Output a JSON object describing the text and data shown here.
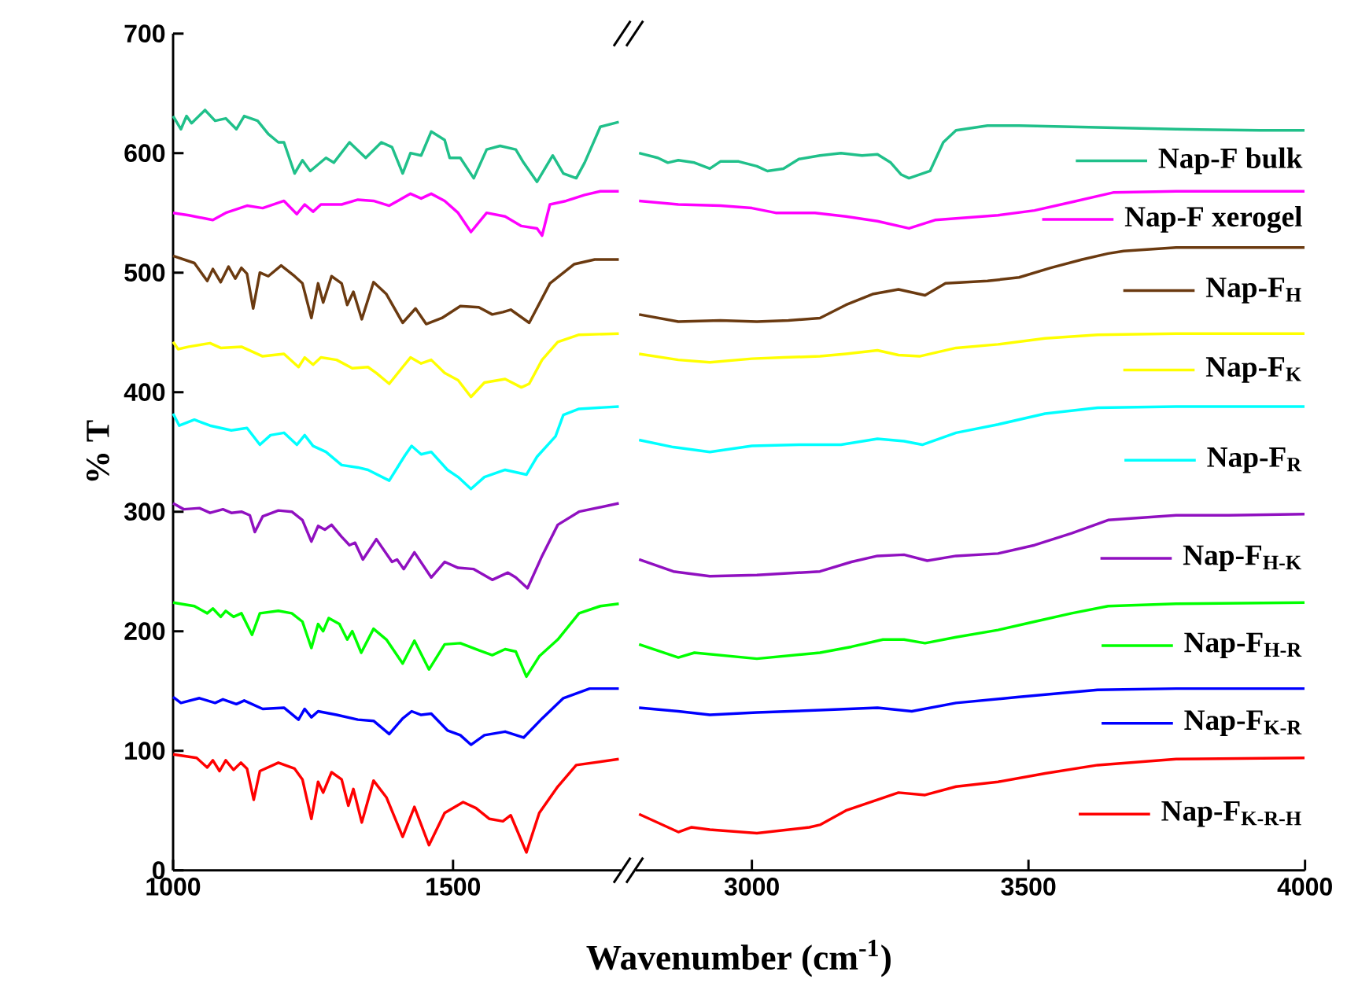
{
  "chart_data": [
    {
      "type": "line",
      "ylabel": "% T",
      "xlim": [
        1000,
        1800
      ],
      "xticks": [
        1000,
        1500
      ],
      "ylim": [
        0,
        700
      ],
      "yticks": [
        0,
        100,
        200,
        300,
        400,
        500,
        600,
        700
      ],
      "series": [
        {
          "color": "#20c08a",
          "x": [
            1000,
            1014,
            1024,
            1033,
            1057,
            1075,
            1094,
            1113,
            1127,
            1151,
            1170,
            1188,
            1198,
            1217,
            1231,
            1245,
            1273,
            1287,
            1315,
            1344,
            1372,
            1391,
            1410,
            1424,
            1443,
            1461,
            1485,
            1494,
            1513,
            1537,
            1560,
            1584,
            1612,
            1626,
            1650,
            1678,
            1697,
            1720,
            1735,
            1763,
            1796
          ],
          "values": [
            631,
            620,
            631,
            625,
            636,
            627,
            629,
            620,
            631,
            627,
            616,
            609,
            609,
            583,
            594,
            585,
            596,
            592,
            609,
            596,
            609,
            605,
            583,
            600,
            598,
            618,
            611,
            596,
            596,
            579,
            603,
            606,
            603,
            592,
            576,
            598,
            583,
            579,
            592,
            622,
            626
          ]
        },
        {
          "color": "#ff00ff",
          "x": [
            1000,
            1028,
            1071,
            1094,
            1132,
            1160,
            1198,
            1221,
            1235,
            1250,
            1264,
            1301,
            1330,
            1358,
            1386,
            1424,
            1443,
            1461,
            1485,
            1509,
            1532,
            1560,
            1593,
            1622,
            1650,
            1659,
            1673,
            1702,
            1735,
            1763,
            1796
          ],
          "values": [
            550,
            548,
            544,
            550,
            556,
            554,
            560,
            549,
            557,
            551,
            557,
            557,
            561,
            560,
            556,
            566,
            562,
            566,
            560,
            550,
            534,
            550,
            547,
            539,
            537,
            531,
            557,
            560,
            565,
            568,
            568
          ]
        },
        {
          "color": "#6b3a10",
          "x": [
            1000,
            1038,
            1061,
            1071,
            1085,
            1099,
            1111,
            1122,
            1132,
            1143,
            1155,
            1170,
            1193,
            1217,
            1231,
            1247,
            1259,
            1268,
            1283,
            1301,
            1311,
            1322,
            1337,
            1358,
            1381,
            1410,
            1433,
            1452,
            1480,
            1513,
            1546,
            1570,
            1589,
            1603,
            1636,
            1673,
            1716,
            1753,
            1796
          ],
          "values": [
            514,
            508,
            493,
            503,
            492,
            505,
            495,
            504,
            499,
            470,
            500,
            497,
            506,
            497,
            491,
            462,
            491,
            475,
            497,
            491,
            473,
            484,
            461,
            492,
            482,
            458,
            470,
            457,
            462,
            472,
            471,
            465,
            467,
            469,
            458,
            491,
            507,
            511,
            511
          ]
        },
        {
          "color": "#ffff00",
          "x": [
            1000,
            1009,
            1028,
            1066,
            1085,
            1122,
            1160,
            1198,
            1224,
            1235,
            1250,
            1264,
            1292,
            1320,
            1348,
            1363,
            1386,
            1410,
            1424,
            1443,
            1461,
            1485,
            1509,
            1532,
            1556,
            1593,
            1622,
            1636,
            1659,
            1687,
            1725,
            1796
          ],
          "values": [
            442,
            436,
            438,
            441,
            437,
            438,
            430,
            432,
            421,
            429,
            423,
            429,
            427,
            420,
            421,
            416,
            407,
            421,
            429,
            424,
            427,
            416,
            410,
            396,
            408,
            411,
            404,
            407,
            427,
            442,
            448,
            449
          ]
        },
        {
          "color": "#00ffff",
          "x": [
            1000,
            1011,
            1038,
            1066,
            1104,
            1132,
            1155,
            1174,
            1198,
            1221,
            1235,
            1250,
            1273,
            1301,
            1330,
            1348,
            1386,
            1414,
            1426,
            1443,
            1461,
            1490,
            1509,
            1532,
            1556,
            1593,
            1631,
            1650,
            1683,
            1697,
            1725,
            1796
          ],
          "values": [
            382,
            372,
            377,
            372,
            368,
            370,
            356,
            364,
            366,
            356,
            364,
            355,
            350,
            339,
            337,
            335,
            326,
            347,
            355,
            348,
            350,
            335,
            329,
            319,
            329,
            335,
            331,
            346,
            363,
            381,
            386,
            388
          ]
        },
        {
          "color": "#9010c0",
          "x": [
            1000,
            1019,
            1047,
            1066,
            1089,
            1104,
            1122,
            1137,
            1146,
            1160,
            1188,
            1212,
            1231,
            1247,
            1259,
            1271,
            1283,
            1301,
            1315,
            1325,
            1339,
            1363,
            1391,
            1400,
            1412,
            1431,
            1461,
            1485,
            1509,
            1537,
            1570,
            1598,
            1612,
            1633,
            1659,
            1687,
            1725,
            1796
          ],
          "values": [
            307,
            302,
            303,
            299,
            302,
            299,
            300,
            297,
            283,
            296,
            301,
            300,
            293,
            275,
            288,
            285,
            289,
            279,
            272,
            274,
            260,
            277,
            258,
            260,
            252,
            266,
            245,
            258,
            253,
            252,
            243,
            249,
            245,
            236,
            263,
            289,
            300,
            307
          ]
        },
        {
          "color": "#00ff00",
          "x": [
            1000,
            1038,
            1061,
            1071,
            1085,
            1094,
            1108,
            1122,
            1141,
            1155,
            1188,
            1212,
            1231,
            1247,
            1259,
            1268,
            1278,
            1297,
            1311,
            1320,
            1336,
            1358,
            1381,
            1410,
            1431,
            1457,
            1485,
            1513,
            1546,
            1570,
            1593,
            1612,
            1631,
            1654,
            1687,
            1725,
            1763,
            1796
          ],
          "values": [
            224,
            221,
            215,
            219,
            212,
            217,
            212,
            215,
            197,
            215,
            217,
            215,
            208,
            186,
            206,
            200,
            211,
            206,
            193,
            200,
            182,
            202,
            193,
            173,
            192,
            168,
            189,
            190,
            184,
            180,
            185,
            183,
            162,
            179,
            193,
            215,
            221,
            223
          ]
        },
        {
          "color": "#0000ff",
          "x": [
            1000,
            1014,
            1047,
            1075,
            1089,
            1113,
            1127,
            1160,
            1198,
            1224,
            1235,
            1247,
            1259,
            1292,
            1330,
            1358,
            1386,
            1410,
            1426,
            1443,
            1461,
            1490,
            1513,
            1532,
            1556,
            1593,
            1626,
            1659,
            1697,
            1744,
            1796
          ],
          "values": [
            145,
            140,
            144,
            140,
            143,
            139,
            142,
            135,
            136,
            126,
            135,
            128,
            133,
            130,
            126,
            125,
            114,
            127,
            133,
            130,
            131,
            117,
            113,
            105,
            113,
            116,
            111,
            127,
            144,
            152,
            152
          ]
        },
        {
          "color": "#ff0000",
          "x": [
            1000,
            1042,
            1061,
            1071,
            1083,
            1094,
            1108,
            1121,
            1132,
            1144,
            1155,
            1188,
            1217,
            1231,
            1247,
            1259,
            1268,
            1283,
            1301,
            1313,
            1322,
            1337,
            1358,
            1381,
            1410,
            1431,
            1457,
            1485,
            1518,
            1541,
            1565,
            1589,
            1603,
            1631,
            1654,
            1687,
            1720,
            1796
          ],
          "values": [
            97,
            94,
            86,
            92,
            83,
            92,
            84,
            90,
            85,
            59,
            83,
            90,
            85,
            76,
            43,
            74,
            65,
            82,
            76,
            54,
            68,
            40,
            75,
            61,
            28,
            53,
            21,
            48,
            57,
            52,
            43,
            41,
            46,
            15,
            48,
            70,
            88,
            93
          ]
        }
      ]
    },
    {
      "type": "line",
      "xlabel": "Wavenumber (cm$^{-1}$)",
      "xlim": [
        2790,
        4000
      ],
      "xticks": [
        3000,
        3500,
        4000
      ],
      "ylim": [
        0,
        700
      ],
      "tick_labels": "x",
      "legend": "right",
      "series": [
        {
          "name": "Nap-F bulk",
          "color": "#20c08a",
          "x": [
            2796,
            2830,
            2848,
            2867,
            2896,
            2924,
            2943,
            2976,
            3009,
            3028,
            3057,
            3085,
            3123,
            3161,
            3199,
            3227,
            3251,
            3270,
            3284,
            3303,
            3322,
            3346,
            3369,
            3426,
            3483,
            3578,
            3672,
            3767,
            3919,
            3999
          ],
          "values": [
            600,
            596,
            592,
            594,
            592,
            587,
            593,
            593,
            589,
            585,
            587,
            595,
            598,
            600,
            598,
            599,
            592,
            582,
            579,
            582,
            585,
            609,
            619,
            623,
            623,
            622,
            621,
            620,
            619,
            619
          ]
        },
        {
          "name": "Nap-F xerogel",
          "color": "#ff00ff",
          "x": [
            2796,
            2867,
            2943,
            3000,
            3043,
            3114,
            3170,
            3227,
            3284,
            3331,
            3388,
            3445,
            3511,
            3578,
            3653,
            3767,
            3999
          ],
          "values": [
            560,
            557,
            556,
            554,
            550,
            550,
            547,
            543,
            537,
            544,
            546,
            548,
            552,
            559,
            567,
            568,
            568
          ]
        },
        {
          "name": "Nap-F$_{H}$",
          "color": "#6b3a10",
          "x": [
            2796,
            2867,
            2943,
            3009,
            3066,
            3123,
            3170,
            3218,
            3265,
            3313,
            3350,
            3426,
            3483,
            3540,
            3597,
            3644,
            3672,
            3767,
            3862,
            3999
          ],
          "values": [
            465,
            459,
            460,
            459,
            460,
            462,
            473,
            482,
            486,
            481,
            491,
            493,
            496,
            504,
            511,
            516,
            518,
            521,
            521,
            521
          ]
        },
        {
          "name": "Nap-F$_{K}$",
          "color": "#ffff00",
          "x": [
            2796,
            2867,
            2924,
            3000,
            3057,
            3123,
            3170,
            3227,
            3265,
            3303,
            3369,
            3445,
            3530,
            3625,
            3767,
            3999
          ],
          "values": [
            432,
            427,
            425,
            428,
            429,
            430,
            432,
            435,
            431,
            430,
            437,
            440,
            445,
            448,
            449,
            449
          ]
        },
        {
          "name": "Nap-F$_{R}$",
          "color": "#00ffff",
          "x": [
            2796,
            2858,
            2924,
            3000,
            3085,
            3161,
            3227,
            3275,
            3308,
            3369,
            3445,
            3530,
            3625,
            3767,
            3999
          ],
          "values": [
            360,
            354,
            350,
            355,
            356,
            356,
            361,
            359,
            356,
            366,
            373,
            382,
            387,
            388,
            388
          ]
        },
        {
          "name": "Nap-F$_{H-K}$",
          "color": "#9010c0",
          "x": [
            2796,
            2858,
            2924,
            3009,
            3123,
            3180,
            3227,
            3275,
            3317,
            3369,
            3445,
            3511,
            3578,
            3644,
            3767,
            3862,
            3999
          ],
          "values": [
            260,
            250,
            246,
            247,
            250,
            258,
            263,
            264,
            259,
            263,
            265,
            272,
            282,
            293,
            297,
            297,
            298
          ]
        },
        {
          "name": "Nap-F$_{H-R}$",
          "color": "#00ff00",
          "x": [
            2796,
            2867,
            2896,
            3009,
            3123,
            3180,
            3237,
            3275,
            3313,
            3369,
            3445,
            3511,
            3578,
            3644,
            3767,
            3999
          ],
          "values": [
            189,
            178,
            182,
            177,
            182,
            187,
            193,
            193,
            190,
            195,
            201,
            208,
            215,
            221,
            223,
            224
          ]
        },
        {
          "name": "Nap-F$_{K-R}$",
          "color": "#0000ff",
          "x": [
            2796,
            2867,
            2924,
            3009,
            3123,
            3227,
            3289,
            3369,
            3483,
            3625,
            3767,
            3999
          ],
          "values": [
            136,
            133,
            130,
            132,
            134,
            136,
            133,
            140,
            145,
            151,
            152,
            152
          ]
        },
        {
          "name": "Nap-F$_{K-R-H}$",
          "color": "#ff0000",
          "x": [
            2796,
            2867,
            2891,
            2924,
            3009,
            3104,
            3123,
            3170,
            3265,
            3313,
            3369,
            3445,
            3530,
            3625,
            3767,
            3999
          ],
          "values": [
            47,
            32,
            36,
            34,
            31,
            36,
            38,
            50,
            65,
            63,
            70,
            74,
            81,
            88,
            93,
            94
          ]
        }
      ]
    }
  ]
}
